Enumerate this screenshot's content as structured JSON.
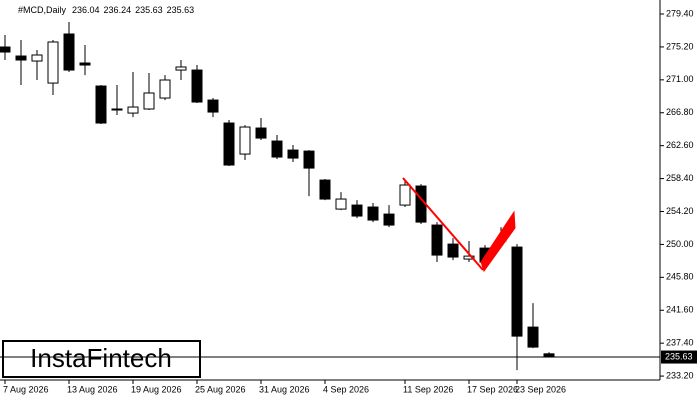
{
  "chart_data": {
    "type": "candlestick",
    "symbol": "#MCD,Daily",
    "categories": [
      "7 Aug 2026",
      null,
      null,
      null,
      "13 Aug 2026",
      null,
      null,
      null,
      "19 Aug 2026",
      null,
      null,
      null,
      "25 Aug 2026",
      null,
      null,
      null,
      "31 Aug 2026",
      null,
      null,
      null,
      "4 Sep 2026",
      null,
      null,
      null,
      null,
      "11 Sep 2026",
      null,
      null,
      null,
      "17 Sep 2026",
      null,
      null,
      "23 Sep 2026",
      null,
      null
    ],
    "open": [
      275.19,
      274.04,
      273.4,
      270.59,
      276.85,
      273.15,
      270.21,
      267.28,
      266.76,
      267.28,
      268.68,
      272.25,
      272.25,
      268.42,
      265.49,
      261.53,
      264.85,
      263.19,
      262.04,
      261.91,
      258.21,
      254.51,
      255.02,
      254.77,
      253.87,
      255.02,
      257.45,
      252.47,
      250.04,
      248.13,
      249.53,
      250.43,
      249.66,
      239.45,
      236.04
    ],
    "high": [
      276.72,
      276.08,
      274.81,
      276.08,
      278.38,
      275.44,
      270.34,
      270.34,
      272.0,
      271.87,
      271.61,
      273.53,
      272.89,
      268.68,
      265.87,
      265.23,
      266.13,
      263.96,
      262.68,
      262.04,
      258.34,
      256.68,
      255.66,
      255.28,
      255.02,
      258.21,
      257.7,
      252.85,
      250.81,
      250.43,
      249.91,
      252.21,
      250.04,
      242.51,
      236.24
    ],
    "low": [
      273.53,
      270.34,
      270.98,
      269.06,
      272.0,
      271.61,
      265.36,
      266.51,
      266.25,
      267.15,
      268.42,
      270.98,
      268.04,
      266.25,
      260.0,
      260.77,
      263.32,
      260.89,
      260.51,
      256.17,
      255.66,
      254.38,
      253.36,
      252.85,
      252.21,
      254.77,
      252.6,
      247.75,
      248.0,
      247.75,
      246.98,
      250.17,
      233.96,
      236.77,
      235.63
    ],
    "close": [
      274.55,
      273.53,
      274.17,
      275.83,
      272.25,
      272.89,
      265.49,
      267.15,
      267.53,
      269.32,
      270.98,
      272.64,
      268.17,
      266.89,
      260.13,
      264.98,
      263.57,
      261.15,
      261.02,
      259.74,
      255.79,
      255.79,
      253.62,
      253.11,
      252.47,
      257.58,
      252.85,
      248.64,
      248.39,
      248.51,
      247.75,
      250.56,
      238.3,
      236.9,
      235.63
    ],
    "last_price": 235.63,
    "ylim": [
      232.7,
      280.55
    ],
    "yticks": [
      {
        "value": 279.4,
        "label": "279.40"
      },
      {
        "value": 275.2,
        "label": "275.20"
      },
      {
        "value": 271,
        "label": "271.00"
      },
      {
        "value": 266.8,
        "label": "266.80"
      },
      {
        "value": 262.6,
        "label": "262.60"
      },
      {
        "value": 258.4,
        "label": "258.40"
      },
      {
        "value": 254.2,
        "label": "254.20"
      },
      {
        "value": 250,
        "label": "250.00"
      },
      {
        "value": 245.8,
        "label": "245.80"
      },
      {
        "value": 241.6,
        "label": "241.60"
      },
      {
        "value": 237.4,
        "label": "237.40"
      },
      {
        "value": 233.2,
        "label": "233.20"
      }
    ],
    "up_color": "#ffffff",
    "down_color": "#000000"
  },
  "logo": "InstaFintech"
}
